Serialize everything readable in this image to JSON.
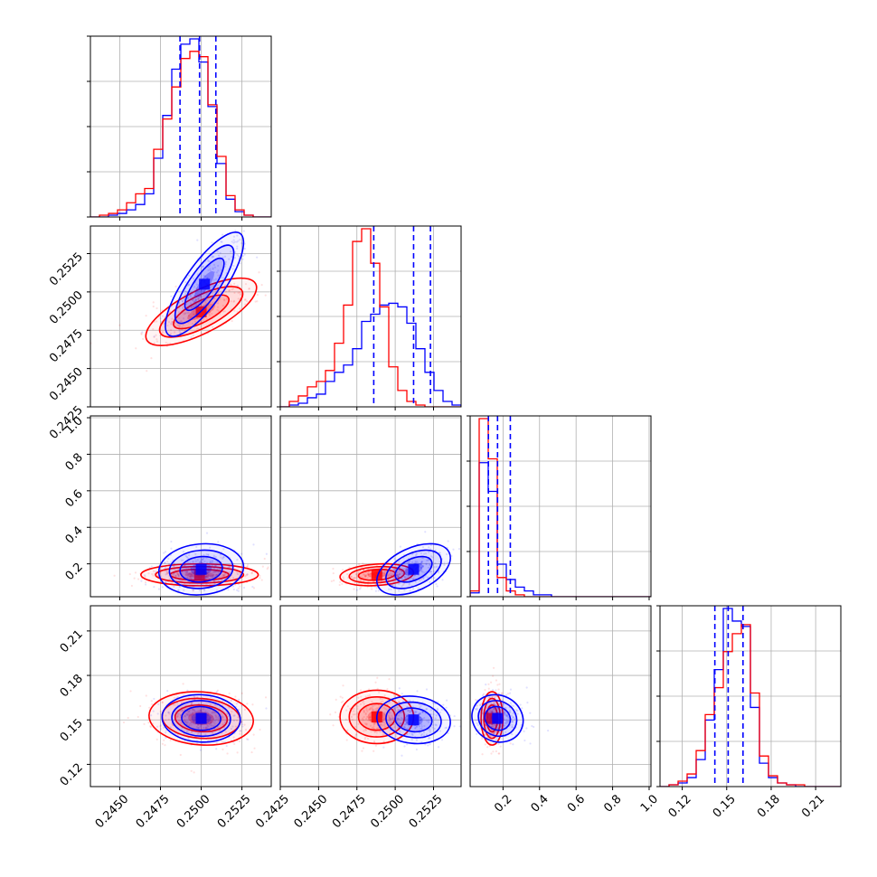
{
  "colors": {
    "series_a": "#0000ff",
    "series_b": "#ff0000",
    "grid": "#b0b0b0",
    "frame": "#000000"
  },
  "chart_data": {
    "type": "corner",
    "parameters": 4,
    "grid": true,
    "series": [
      {
        "color": "#0000ff",
        "medians": [
          0.2499,
          0.2512,
          0.17,
          0.151
        ],
        "quantiles_16": [
          0.2487,
          0.2486,
          0.12,
          0.142
        ],
        "quantiles_84": [
          0.2509,
          0.2523,
          0.24,
          0.161
        ]
      },
      {
        "color": "#ff0000",
        "medians": [
          0.25,
          0.2488,
          0.14,
          0.151
        ]
      }
    ],
    "axes": [
      {
        "index": 0,
        "range": [
          0.2432,
          0.2543
        ],
        "ticks": [
          0.245,
          0.2475,
          0.25,
          0.2525
        ],
        "tick_labels": [
          "0.2450",
          "0.2475",
          "0.2500",
          "0.2525"
        ]
      },
      {
        "index": 1,
        "range": [
          0.2425,
          0.2543
        ],
        "ticks": [
          0.2425,
          0.245,
          0.2475,
          0.25,
          0.2525
        ],
        "tick_labels": [
          "0.2425",
          "0.2450",
          "0.2475",
          "0.2500",
          "0.2525"
        ]
      },
      {
        "index": 2,
        "range": [
          0.02,
          1.01
        ],
        "ticks": [
          0.2,
          0.4,
          0.6,
          0.8,
          1.0
        ],
        "tick_labels": [
          "0.2",
          "0.4",
          "0.6",
          "0.8",
          "1.0"
        ]
      },
      {
        "index": 3,
        "range": [
          0.105,
          0.227
        ],
        "ticks": [
          0.12,
          0.15,
          0.18,
          0.21
        ],
        "tick_labels": [
          "0.12",
          "0.15",
          "0.18",
          "0.21"
        ]
      }
    ],
    "histograms": [
      {
        "param": 0,
        "bins": [
          0.2432,
          0.2543
        ],
        "blue": [
          0,
          0,
          1,
          2,
          4,
          7,
          13,
          33,
          57,
          83,
          97,
          100,
          87,
          62,
          30,
          10,
          3,
          1,
          0,
          0
        ],
        "red": [
          0,
          1,
          2,
          4,
          8,
          13,
          16,
          38,
          55,
          73,
          89,
          93,
          90,
          63,
          34,
          12,
          4,
          1,
          0,
          0
        ]
      },
      {
        "param": 1,
        "bins": [
          0.2425,
          0.2543
        ],
        "blue": [
          0,
          1,
          2,
          5,
          7,
          14,
          19,
          23,
          32,
          47,
          51,
          56,
          57,
          55,
          46,
          32,
          19,
          9,
          3,
          1
        ],
        "red": [
          0,
          3,
          6,
          11,
          14,
          20,
          35,
          56,
          91,
          98,
          79,
          55,
          22,
          9,
          3,
          1,
          0,
          0,
          0,
          0
        ]
      },
      {
        "param": 2,
        "bins": [
          0.02,
          1.01
        ],
        "blue": [
          2,
          70,
          55,
          17,
          9,
          5,
          3,
          1,
          1,
          0,
          0,
          0,
          0,
          0,
          0,
          0,
          0,
          0,
          0,
          0
        ],
        "red": [
          3,
          93,
          72,
          10,
          3,
          1,
          0,
          0,
          0,
          0,
          0,
          0,
          0,
          0,
          0,
          0,
          0,
          0,
          0,
          0
        ]
      },
      {
        "param": 3,
        "bins": [
          0.105,
          0.227
        ],
        "blue": [
          0,
          1,
          2,
          5,
          15,
          37,
          65,
          99,
          92,
          89,
          44,
          13,
          5,
          2,
          1,
          0,
          0,
          0,
          0,
          0
        ],
        "red": [
          0,
          1,
          3,
          7,
          20,
          40,
          55,
          75,
          85,
          90,
          52,
          17,
          6,
          2,
          1,
          1,
          0,
          0,
          0,
          0
        ]
      }
    ],
    "pairs": [
      {
        "x": 0,
        "y": 1,
        "blue": {
          "mean": [
            0.2502,
            0.2505
          ],
          "sd": [
            0.0012,
            0.0017
          ],
          "corr": 0.8
        },
        "red": {
          "mean": [
            0.25,
            0.2487
          ],
          "sd": [
            0.0017,
            0.0011
          ],
          "corr": 0.72
        }
      },
      {
        "x": 0,
        "y": 2,
        "blue": {
          "mean": [
            0.25,
            0.17
          ],
          "sd": [
            0.0013,
            0.07
          ],
          "corr": 0.1
        },
        "red": {
          "mean": [
            0.2499,
            0.14
          ],
          "sd": [
            0.0018,
            0.03
          ],
          "corr": 0.0
        }
      },
      {
        "x": 1,
        "y": 2,
        "blue": {
          "mean": [
            0.2512,
            0.17
          ],
          "sd": [
            0.0012,
            0.07
          ],
          "corr": 0.45
        },
        "red": {
          "mean": [
            0.2488,
            0.14
          ],
          "sd": [
            0.0012,
            0.03
          ],
          "corr": 0.2
        }
      },
      {
        "x": 0,
        "y": 3,
        "blue": {
          "mean": [
            0.25,
            0.151
          ],
          "sd": [
            0.0012,
            0.008
          ],
          "corr": -0.05
        },
        "red": {
          "mean": [
            0.25,
            0.151
          ],
          "sd": [
            0.0016,
            0.009
          ],
          "corr": -0.1
        }
      },
      {
        "x": 1,
        "y": 3,
        "blue": {
          "mean": [
            0.2512,
            0.15
          ],
          "sd": [
            0.0012,
            0.008
          ],
          "corr": -0.1
        },
        "red": {
          "mean": [
            0.2488,
            0.152
          ],
          "sd": [
            0.0012,
            0.009
          ],
          "corr": 0.0
        }
      },
      {
        "x": 2,
        "y": 3,
        "blue": {
          "mean": [
            0.17,
            0.151
          ],
          "sd": [
            0.07,
            0.008
          ],
          "corr": -0.1
        },
        "red": {
          "mean": [
            0.14,
            0.151
          ],
          "sd": [
            0.03,
            0.009
          ],
          "corr": 0.0
        }
      }
    ]
  }
}
